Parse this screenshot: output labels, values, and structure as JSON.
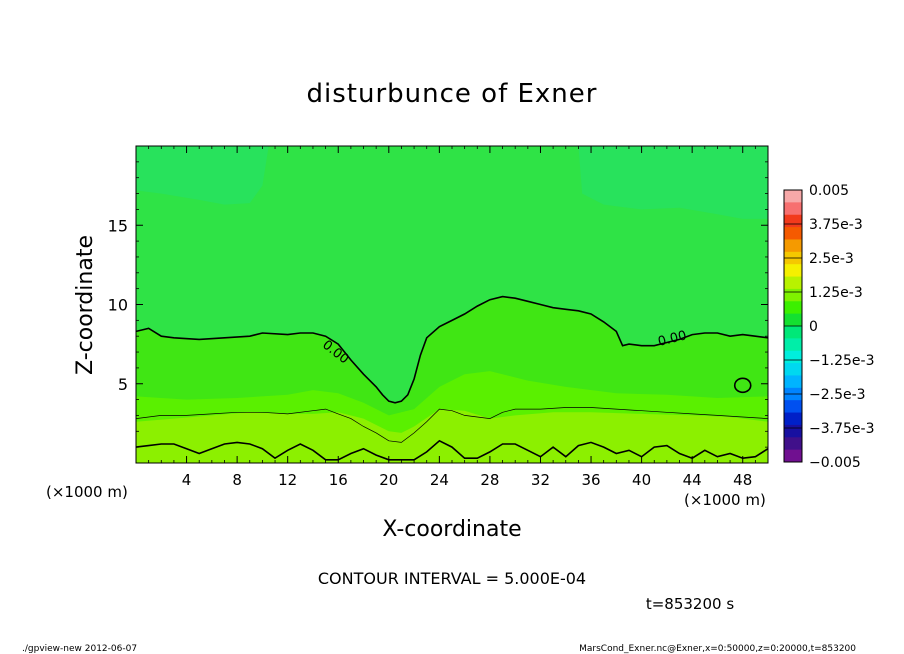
{
  "chart_data": {
    "type": "heatmap",
    "title": "disturbunce of Exner",
    "xlabel": "X-coordinate",
    "ylabel": "Z-coordinate",
    "x_unit_left": "(×1000 m)",
    "x_unit_right": "(×1000 m)",
    "xlim": [
      0,
      50
    ],
    "ylim": [
      0,
      20
    ],
    "x_ticks": [
      4,
      8,
      12,
      16,
      20,
      24,
      28,
      32,
      36,
      40,
      44,
      48
    ],
    "x_tick_labels": [
      "4",
      "8",
      "12",
      "16",
      "20",
      "24",
      "28",
      "32",
      "36",
      "40",
      "44",
      "48"
    ],
    "y_ticks": [
      5,
      10,
      15
    ],
    "y_tick_labels": [
      "5",
      "10",
      "15"
    ],
    "contour_interval_text": "CONTOUR INTERVAL = 5.000E-04",
    "time_text": "t=853200 s",
    "contour_labels": [
      "0.00",
      "0.00"
    ],
    "zero_contour_upper": {
      "x": [
        0,
        1,
        2,
        3,
        5,
        7,
        9,
        10,
        12,
        13,
        14,
        15,
        16,
        17,
        18,
        19,
        19.5,
        20,
        20.5,
        21,
        21.5,
        22,
        22.5,
        23,
        24,
        25,
        26,
        27,
        28,
        29,
        30,
        31,
        32,
        33,
        34,
        35,
        36,
        37,
        38,
        38.5,
        39,
        40,
        41,
        42,
        43,
        44,
        45,
        46,
        47,
        48,
        49,
        50
      ],
      "y": [
        8.3,
        8.5,
        8.0,
        7.9,
        7.8,
        7.9,
        8.0,
        8.2,
        8.1,
        8.2,
        8.2,
        8.0,
        7.5,
        6.5,
        5.6,
        4.8,
        4.3,
        3.9,
        3.8,
        3.9,
        4.3,
        5.3,
        6.8,
        7.9,
        8.6,
        9.0,
        9.4,
        9.9,
        10.3,
        10.5,
        10.4,
        10.2,
        10.0,
        9.8,
        9.7,
        9.6,
        9.4,
        8.9,
        8.3,
        7.4,
        7.5,
        7.4,
        7.4,
        7.6,
        7.8,
        8.1,
        8.2,
        8.2,
        8.0,
        8.1,
        8.0,
        7.9
      ]
    },
    "zero_contour_lower": {
      "x": [
        0,
        1,
        2,
        3,
        4,
        5,
        6,
        7,
        8,
        9,
        10,
        11,
        12,
        13,
        14,
        15,
        16,
        17,
        18,
        19,
        20,
        21,
        22,
        23,
        24,
        25,
        26,
        27,
        28,
        29,
        30,
        31,
        32,
        33,
        34,
        35,
        36,
        37,
        38,
        39,
        40,
        41,
        42,
        43,
        44,
        45,
        46,
        47,
        48,
        49,
        50
      ],
      "y": [
        1.0,
        1.1,
        1.2,
        1.2,
        0.9,
        0.6,
        0.9,
        1.2,
        1.3,
        1.2,
        0.9,
        0.3,
        0.8,
        1.2,
        0.8,
        0.2,
        0.2,
        0.6,
        0.9,
        0.5,
        0.2,
        0.2,
        0.2,
        0.7,
        1.4,
        1.0,
        0.3,
        0.3,
        0.7,
        1.2,
        1.2,
        0.8,
        0.4,
        1.0,
        0.4,
        1.1,
        1.3,
        1.0,
        0.6,
        0.8,
        0.4,
        1.0,
        1.1,
        0.6,
        0.3,
        0.8,
        0.4,
        0.6,
        0.3,
        0.4,
        0.9
      ]
    },
    "small_closed_contour": {
      "x": 48.0,
      "y": 4.9
    },
    "colorbar": {
      "tick_labels": [
        "0.005",
        "3.75e-3",
        "2.5e-3",
        "1.25e-3",
        "0",
        "−1.25e-3",
        "−2.5e-3",
        "−3.75e-3",
        "−0.005"
      ],
      "levels": [
        0.005,
        0.00375,
        0.0025,
        0.00125,
        0,
        -0.00125,
        -0.0025,
        -0.00375,
        -0.005
      ],
      "colors": [
        "#f7a8a8",
        "#f77070",
        "#f23a1c",
        "#f55a00",
        "#f59a00",
        "#f5c800",
        "#f5f000",
        "#b8f200",
        "#7ff200",
        "#3cf000",
        "#14e030",
        "#00e878",
        "#00eea8",
        "#00eedc",
        "#00d8f0",
        "#00b4ff",
        "#0084ff",
        "#0050f0",
        "#0020c8",
        "#1810a0",
        "#40108a",
        "#701090"
      ]
    },
    "footer_left": "./gpview-new  2012-06-07",
    "footer_right": "MarsCond_Exner.nc@Exner,x=0:50000,z=0:20000,t=853200",
    "field_colors": {
      "top": "#28e25c",
      "upper": "#2fe346",
      "mid": "#40e614",
      "lower": "#5af000",
      "bottom": "#8cf000"
    }
  }
}
